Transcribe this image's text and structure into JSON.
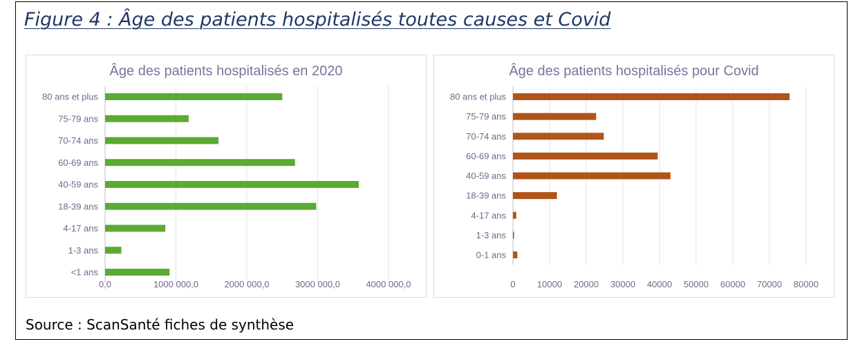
{
  "figure": {
    "title": "Figure 4 : Âge des patients hospitalisés toutes causes et Covid",
    "source": "Source : ScanSanté fiches de synthèse"
  },
  "chart_data": [
    {
      "type": "bar",
      "orientation": "horizontal",
      "title": "Âge des patients hospitalisés en 2020",
      "categories": [
        "80 ans et plus",
        "75-79 ans",
        "70-74 ans",
        "60-69 ans",
        "40-59 ans",
        "18-39 ans",
        "4-17 ans",
        "1-3 ans",
        "<1 ans"
      ],
      "values": [
        2500000,
        1180000,
        1600000,
        2680000,
        3580000,
        2980000,
        850000,
        230000,
        910000
      ],
      "xlim": [
        0,
        4000000
      ],
      "ticks": [
        0,
        1000000,
        2000000,
        3000000,
        4000000
      ],
      "tick_labels": [
        "0,0",
        "1000 000,0",
        "2000 000,0",
        "3000 000,0",
        "4000 000,0"
      ],
      "color": "#5aab32",
      "grid": true
    },
    {
      "type": "bar",
      "orientation": "horizontal",
      "title": "Âge des patients hospitalisés pour Covid",
      "categories": [
        "80 ans et plus",
        "75-79 ans",
        "70-74 ans",
        "60-69 ans",
        "40-59 ans",
        "18-39 ans",
        "4-17 ans",
        "1-3 ans",
        "0-1 ans"
      ],
      "values": [
        75500,
        22700,
        24800,
        39500,
        43000,
        12000,
        900,
        300,
        1200
      ],
      "xlim": [
        0,
        80000
      ],
      "ticks": [
        0,
        10000,
        20000,
        30000,
        40000,
        50000,
        60000,
        70000,
        80000
      ],
      "tick_labels": [
        "0",
        "10000",
        "20000",
        "30000",
        "40000",
        "50000",
        "60000",
        "70000",
        "80000"
      ],
      "color": "#b0551a",
      "grid": true
    }
  ]
}
